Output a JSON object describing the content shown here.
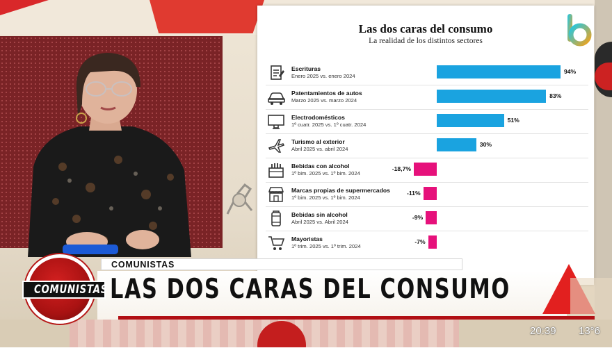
{
  "chart_card": {
    "title": "Las dos caras del consumo",
    "subtitle": "La realidad de los distintos sectores"
  },
  "chart_data": {
    "type": "bar",
    "title": "Las dos caras del consumo",
    "subtitle": "La realidad de los distintos sectores",
    "orientation": "horizontal",
    "categories": [
      "Escrituras",
      "Patentamientos de autos",
      "Electrodomésticos",
      "Turismo al exterior",
      "Bebidas con alcohol",
      "Marcas propias de supermercados",
      "Bebidas sin alcohol",
      "Mayoristas"
    ],
    "periods": [
      "Enero 2025 vs. enero 2024",
      "Marzo 2025 vs. marzo 2024",
      "1º cuatr. 2025 vs. 1º cuatr. 2024",
      "Abril 2025 vs. abril 2024",
      "1º bim. 2025 vs. 1º bim. 2024",
      "1º bim. 2025 vs. 1º bim. 2024",
      "Abril 2025 vs. Abril 2024",
      "1º trim. 2025 vs. 1º trim. 2024"
    ],
    "values": [
      94,
      83,
      51,
      30,
      -18.7,
      -11,
      -9,
      -7
    ],
    "value_labels": [
      "94%",
      "83%",
      "51%",
      "30%",
      "-18,7%",
      "-11%",
      "-9%",
      "-7%"
    ],
    "icons": [
      "document-icon",
      "car-icon",
      "monitor-icon",
      "airplane-icon",
      "beverage-crate-icon",
      "storefront-icon",
      "can-icon",
      "shopping-cart-icon"
    ],
    "colors": {
      "positive": "#1aa3e0",
      "negative": "#e6117b"
    },
    "xlim": [
      -20,
      100
    ]
  },
  "lower_third": {
    "kicker": "COMUNISTAS",
    "headline": "LAS DOS CARAS DEL CONSUMO",
    "show_logo": "COMUNISTAS"
  },
  "overlay": {
    "clock": "20:39",
    "temperature": "13°6"
  },
  "channel_logo": {
    "icon": "channel-b-logo"
  },
  "colors": {
    "accent_red": "#d9282a",
    "bar_positive": "#1aa3e0",
    "bar_negative": "#e6117b"
  }
}
